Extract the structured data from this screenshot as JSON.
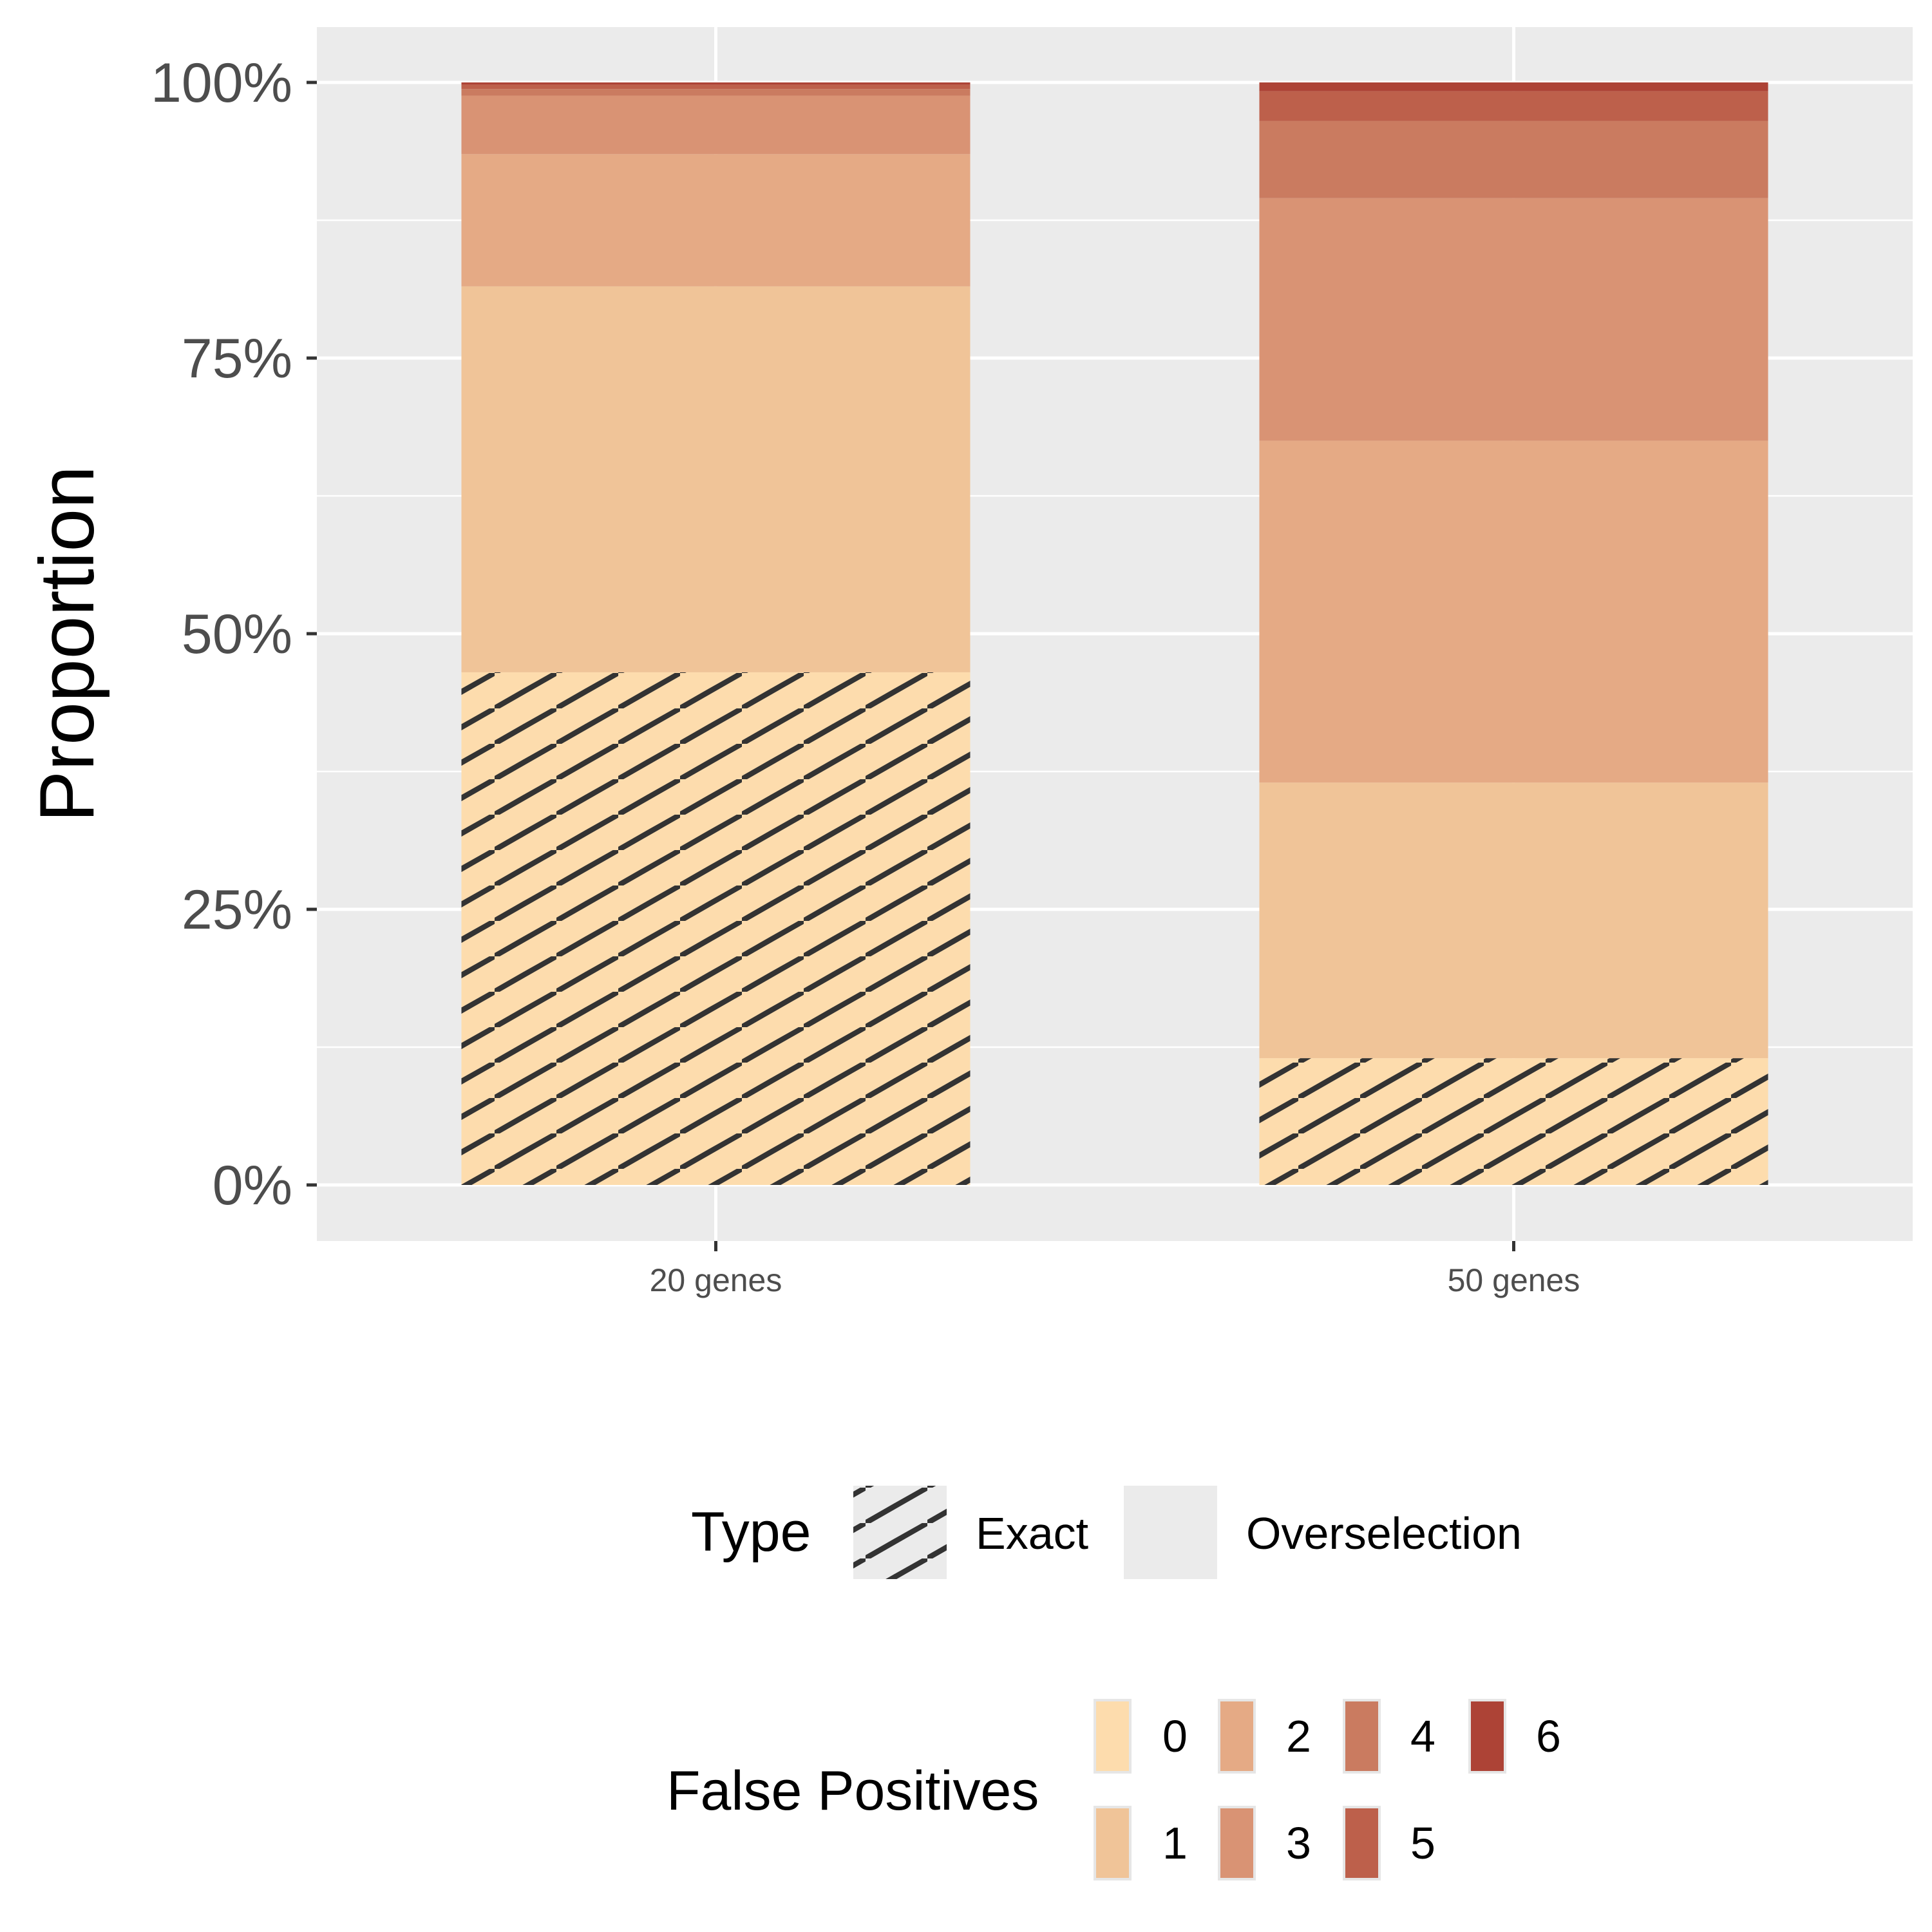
{
  "chart_data": {
    "type": "bar",
    "stacked": true,
    "percent_scale": true,
    "xlabel": "",
    "ylabel": "Proportion",
    "ylim": [
      0,
      1
    ],
    "yticks": [
      "0%",
      "25%",
      "50%",
      "75%",
      "100%"
    ],
    "categories": [
      "20 genes",
      "50 genes"
    ],
    "grid": true,
    "legend_position": "bottom",
    "series": [
      {
        "name": "0",
        "type": "Exact",
        "color": "#fddcad",
        "values": [
          0.465,
          0.115
        ]
      },
      {
        "name": "1",
        "type": "Overselection",
        "color": "#f0c498",
        "values": [
          0.35,
          0.25
        ]
      },
      {
        "name": "2",
        "type": "Overselection",
        "color": "#e5aa85",
        "values": [
          0.12,
          0.31
        ]
      },
      {
        "name": "3",
        "type": "Overselection",
        "color": "#d99374",
        "values": [
          0.053,
          0.22
        ]
      },
      {
        "name": "4",
        "type": "Overselection",
        "color": "#ca7b60",
        "values": [
          0.006,
          0.07
        ]
      },
      {
        "name": "5",
        "type": "Overselection",
        "color": "#bd604b",
        "values": [
          0.004,
          0.027
        ]
      },
      {
        "name": "6",
        "type": "Overselection",
        "color": "#ad4336",
        "values": [
          0.002,
          0.008
        ]
      }
    ],
    "legends": {
      "type": {
        "title": "Type",
        "items": [
          "Exact",
          "Overselection"
        ]
      },
      "false_positives": {
        "title": "False Positives",
        "items": [
          "0",
          "1",
          "2",
          "3",
          "4",
          "5",
          "6"
        ]
      }
    },
    "colors": {
      "panel_background": "#ebebeb",
      "gridline": "#ffffff",
      "hatch": "#333333"
    }
  }
}
